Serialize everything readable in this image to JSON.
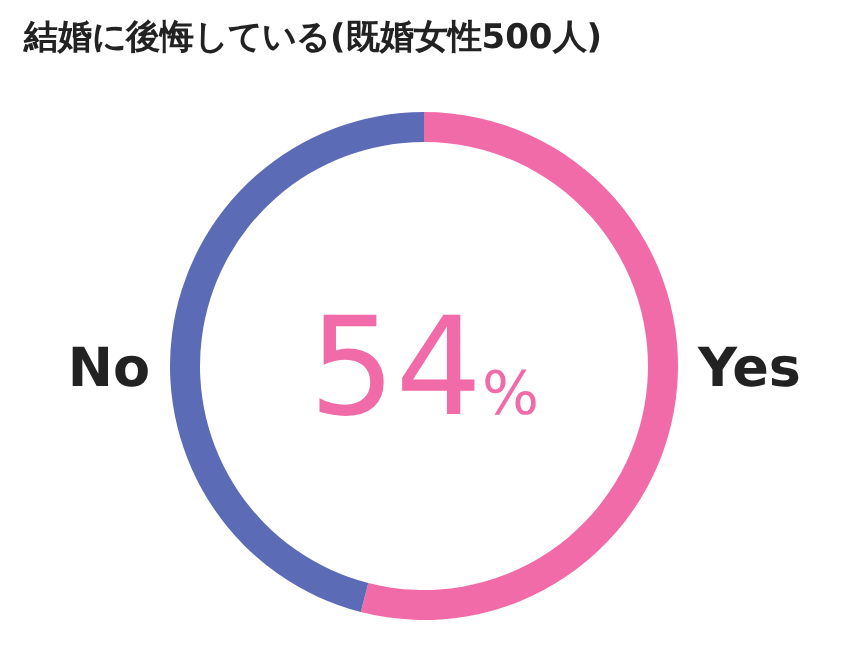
{
  "chart_data": {
    "type": "donut",
    "title": "結婚に後悔している(既婚女性500人)",
    "categories": [
      "Yes",
      "No"
    ],
    "values": [
      54,
      46
    ],
    "colors": [
      "#f06ba8",
      "#5b6bb5"
    ],
    "value_labels": [
      "54%",
      null
    ]
  }
}
